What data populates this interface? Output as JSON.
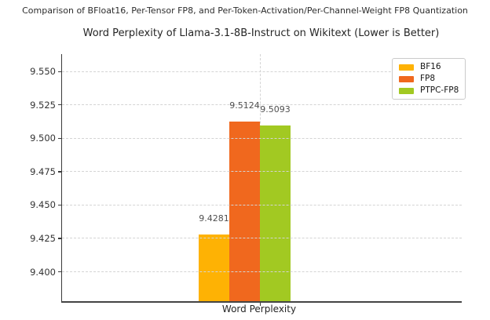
{
  "figure": {
    "suptitle": "Comparison of BFloat16, Per-Tensor FP8, and Per-Token-Activation/Per-Channel-Weight FP8 Quantization"
  },
  "chart_data": {
    "type": "bar",
    "title": "Word Perplexity of Llama-3.1-8B-Instruct on Wikitext (Lower is Better)",
    "xlabel": "Word Perplexity",
    "categories": [
      "Word Perplexity"
    ],
    "series": [
      {
        "name": "BF16",
        "values": [
          9.4281
        ],
        "color": "#FEB204"
      },
      {
        "name": "FP8",
        "values": [
          9.5124
        ],
        "color": "#F0681E"
      },
      {
        "name": "PTPC-FP8",
        "values": [
          9.5093
        ],
        "color": "#A2C922"
      }
    ],
    "bar_value_labels": [
      "9.4281",
      "9.5124",
      "9.5093"
    ],
    "ylim": [
      9.378,
      9.563
    ],
    "yticks": [
      9.4,
      9.425,
      9.45,
      9.475,
      9.5,
      9.525,
      9.55
    ],
    "ytick_labels": [
      "9.400",
      "9.425",
      "9.450",
      "9.475",
      "9.500",
      "9.525",
      "9.550"
    ],
    "grid": true,
    "grid_style": "dashed",
    "legend": {
      "position": "upper right",
      "entries": [
        "BF16",
        "FP8",
        "PTPC-FP8"
      ]
    },
    "colors": {
      "axis": "#3a3a3a",
      "grid": "#d4d4d4",
      "value_label": "#4f4f4f"
    }
  }
}
